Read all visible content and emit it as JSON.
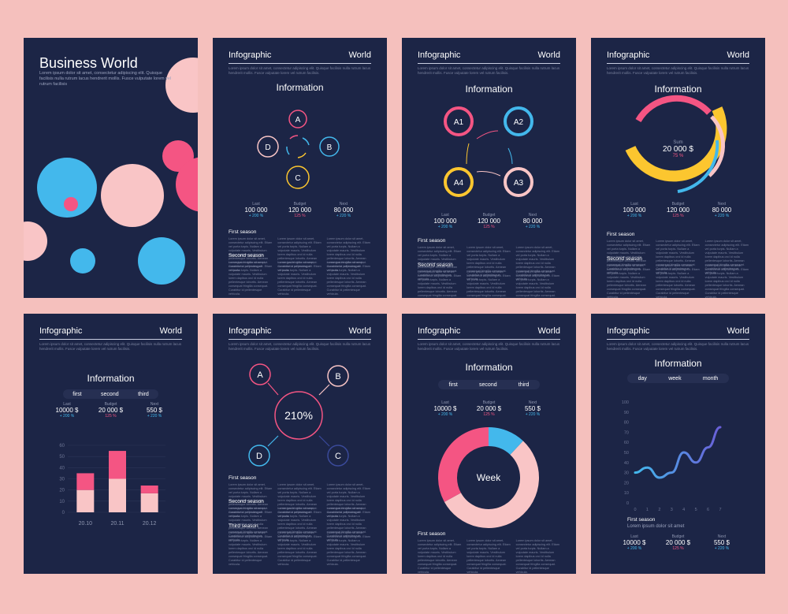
{
  "colors": {
    "background": "#f5c0bd",
    "card": "#1c2546",
    "pink": "#f45583",
    "blue": "#43b8ec",
    "light_pink": "#f9c5c6",
    "yellow": "#fcc62f",
    "navy": "#3a4a9a"
  },
  "header": {
    "left": "Infographic",
    "right": "World"
  },
  "lorem": "Lorem ipsum dolor sit amet, consectetur adipiscing elit. Quisque facilisis nulla rutrum lacus hendrerit mollis. Fusce vulputate lorem vel rutrum facilisis.",
  "body_text": "Lorem ipsum dolor sit amet, consectetur adipiscing elit. Etiam vel porta turpis. Nullam a vulputate mauris. Vestibulum lorem dapibus orci id nulla pellentesque lobortis. Aenean consequat fringilla consequat. Curabitur id pellentesque vehicula.",
  "card1": {
    "title": "Business World",
    "text": "Lorem ipsum dolor sit amet, consectetur adipiscing elit. Quisque facilisis nulla rutrum lacus hendrerit mollis. Fusce vulputate lorem vel rutrum facilisis"
  },
  "card2": {
    "title": "Information",
    "nodes": [
      "A",
      "B",
      "C",
      "D"
    ],
    "stats": [
      {
        "label": "Last",
        "value": "100 000",
        "pct": "+ 200 %"
      },
      {
        "label": "Budget",
        "value": "120 000",
        "pct": "125 %"
      },
      {
        "label": "Next",
        "value": "80 000",
        "pct": "+ 220 %"
      }
    ],
    "season1": "First season",
    "season2": "Second season"
  },
  "card3": {
    "title": "Information",
    "nodes": [
      "A1",
      "A2",
      "A3",
      "A4"
    ],
    "stats": [
      {
        "label": "Last",
        "value": "100 000",
        "pct": "+ 200 %"
      },
      {
        "label": "Budget",
        "value": "120 000",
        "pct": "125 %"
      },
      {
        "label": "Next",
        "value": "80 000",
        "pct": "+ 220 %"
      }
    ],
    "season1": "First season",
    "season2": "Second season"
  },
  "card4": {
    "title": "Information",
    "sum_label": "Sum",
    "sum_value": "20 000 $",
    "sum_pct": "75 %",
    "stats": [
      {
        "label": "Last",
        "value": "100 000",
        "pct": "+ 200 %"
      },
      {
        "label": "Budget",
        "value": "120 000",
        "pct": "125 %"
      },
      {
        "label": "Next",
        "value": "80 000",
        "pct": "+ 220 %"
      }
    ],
    "season1": "First season",
    "season2": "Second season"
  },
  "card5": {
    "title": "Information",
    "tabs": [
      "first",
      "second",
      "third"
    ],
    "stats": [
      {
        "label": "Last",
        "value": "10000 $",
        "pct": "+ 200 %"
      },
      {
        "label": "Budget",
        "value": "20 000 $",
        "pct": "125 %"
      },
      {
        "label": "Next",
        "value": "550 $",
        "pct": "+ 220 %"
      }
    ]
  },
  "card6": {
    "center": "210%",
    "nodes": [
      "A",
      "B",
      "C",
      "D"
    ],
    "season1": "First season",
    "season2": "Second season",
    "season3": "Third season"
  },
  "card7": {
    "title": "Information",
    "tabs": [
      "first",
      "second",
      "third"
    ],
    "stats": [
      {
        "label": "Last",
        "value": "10000 $",
        "pct": "+ 200 %"
      },
      {
        "label": "Budget",
        "value": "20 000 $",
        "pct": "125 %"
      },
      {
        "label": "Next",
        "value": "550 $",
        "pct": "+ 220 %"
      }
    ],
    "center": "Week",
    "season1": "First season"
  },
  "card8": {
    "title": "Information",
    "tabs": [
      "day",
      "week",
      "month"
    ],
    "season": "First season",
    "season_text": "Lorem ipsum dolor sit amet",
    "stats": [
      {
        "label": "Last",
        "value": "10000 $",
        "pct": "+ 200 %"
      },
      {
        "label": "Budget",
        "value": "20 000 $",
        "pct": "125 %"
      },
      {
        "label": "Next",
        "value": "550 $",
        "pct": "+ 220 %"
      }
    ]
  },
  "chart_data": [
    {
      "type": "bar",
      "categories": [
        "20.10",
        "20.11",
        "20.12"
      ],
      "series": [
        {
          "values": [
            20,
            30,
            17
          ]
        },
        {
          "values": [
            15,
            25,
            7
          ]
        }
      ],
      "yticks": [
        "0",
        "10",
        "20",
        "30",
        "40",
        "50",
        "60"
      ],
      "ylim": [
        0,
        60
      ],
      "stacked": true
    },
    {
      "type": "pie",
      "center_label": "Week",
      "slices": [
        {
          "value": 55
        },
        {
          "value": 33
        },
        {
          "value": 12
        }
      ]
    },
    {
      "type": "line",
      "xticks": [
        "0",
        "1",
        "2",
        "3",
        "4",
        "5",
        "6",
        "7"
      ],
      "yticks": [
        "0",
        "10",
        "20",
        "30",
        "40",
        "50",
        "60",
        "70",
        "80",
        "90",
        "100"
      ],
      "ylim": [
        0,
        100
      ],
      "x": [
        0,
        1,
        2,
        3,
        4,
        5,
        6,
        7
      ],
      "y": [
        30,
        35,
        25,
        30,
        50,
        40,
        55,
        75
      ]
    }
  ]
}
